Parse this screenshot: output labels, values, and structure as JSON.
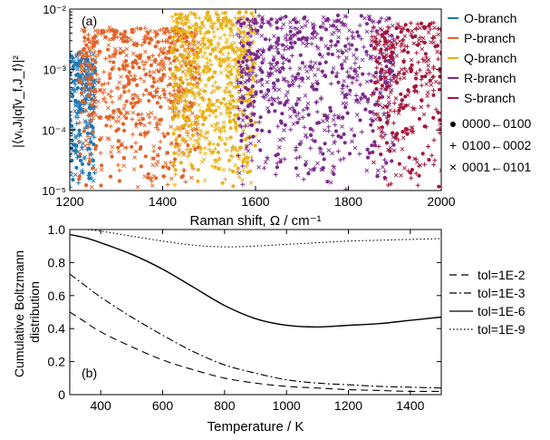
{
  "chart_data": [
    {
      "panel": "(a)",
      "type": "scatter",
      "xlabel": "Raman shift, Ω / cm⁻¹",
      "ylabel": "|⟨vᵢ,Jᵢ|α̃|v_f,J_f⟩|²",
      "xlim": [
        1200,
        2000
      ],
      "ylim": [
        1e-05,
        0.01
      ],
      "yscale": "log",
      "xticks": [
        1200,
        1400,
        1600,
        1800,
        2000
      ],
      "yticks": [
        {
          "value": 1e-05,
          "label": "10⁻⁵"
        },
        {
          "value": 0.0001,
          "label": "10⁻⁴"
        },
        {
          "value": 0.001,
          "label": "10⁻³"
        },
        {
          "value": 0.01,
          "label": "10⁻²"
        }
      ],
      "legend_position": "outside-right",
      "series": [
        {
          "name": "O-branch",
          "color": "#1f78b4",
          "x_range": [
            1200,
            1255
          ],
          "y_range": [
            1e-05,
            0.002
          ]
        },
        {
          "name": "P-branch",
          "color": "#e0642a",
          "x_range": [
            1220,
            1480
          ],
          "y_range": [
            1e-05,
            0.005
          ]
        },
        {
          "name": "Q-branch",
          "color": "#e8b21a",
          "x_range": [
            1420,
            1600
          ],
          "y_range": [
            1e-05,
            0.009
          ]
        },
        {
          "name": "R-branch",
          "color": "#7b2a8e",
          "x_range": [
            1560,
            1900
          ],
          "y_range": [
            1e-05,
            0.008
          ]
        },
        {
          "name": "S-branch",
          "color": "#a3173a",
          "x_range": [
            1850,
            2000
          ],
          "y_range": [
            1e-05,
            0.006
          ]
        }
      ],
      "marker_legend": [
        {
          "symbol": "●",
          "label": "0000←0100"
        },
        {
          "symbol": "+",
          "label": "0100←0002"
        },
        {
          "symbol": "×",
          "label": "0001←0101"
        }
      ]
    },
    {
      "panel": "(b)",
      "type": "line",
      "xlabel": "Temperature / K",
      "ylabel": "Cumulative Boltzmann distribution",
      "xlim": [
        300,
        1500
      ],
      "ylim": [
        0,
        1.0
      ],
      "xticks": [
        400,
        600,
        800,
        1000,
        1200,
        1400
      ],
      "yticks": [
        0,
        0.2,
        0.4,
        0.6,
        0.8,
        1.0
      ],
      "ytick_labels": [
        "0",
        "0.2",
        "0.4",
        "0.6",
        "0.8",
        "1.0"
      ],
      "legend_position": "right",
      "series": [
        {
          "name": "tol=1E-2",
          "dash": "8,5",
          "x": [
            300,
            350,
            400,
            500,
            600,
            700,
            800,
            900,
            1000,
            1100,
            1200,
            1300,
            1400,
            1500
          ],
          "y": [
            0.5,
            0.44,
            0.38,
            0.29,
            0.21,
            0.15,
            0.1,
            0.07,
            0.05,
            0.04,
            0.03,
            0.025,
            0.02,
            0.02
          ]
        },
        {
          "name": "tol=1E-3",
          "dash": "8,3,2,3",
          "x": [
            300,
            350,
            400,
            500,
            600,
            700,
            800,
            900,
            1000,
            1100,
            1200,
            1300,
            1400,
            1500
          ],
          "y": [
            0.73,
            0.66,
            0.59,
            0.47,
            0.36,
            0.26,
            0.18,
            0.13,
            0.09,
            0.07,
            0.06,
            0.05,
            0.045,
            0.04
          ]
        },
        {
          "name": "tol=1E-6",
          "dash": "",
          "x": [
            300,
            350,
            400,
            500,
            600,
            700,
            800,
            900,
            1000,
            1100,
            1200,
            1300,
            1400,
            1500
          ],
          "y": [
            0.97,
            0.95,
            0.92,
            0.85,
            0.76,
            0.65,
            0.54,
            0.46,
            0.42,
            0.41,
            0.42,
            0.43,
            0.45,
            0.47
          ]
        },
        {
          "name": "tol=1E-9",
          "dash": "1.5,2.5",
          "x": [
            300,
            350,
            400,
            500,
            600,
            700,
            800,
            900,
            1000,
            1100,
            1200,
            1300,
            1400,
            1500
          ],
          "y": [
            1.0,
            1.0,
            0.99,
            0.96,
            0.93,
            0.905,
            0.895,
            0.9,
            0.91,
            0.92,
            0.93,
            0.935,
            0.94,
            0.945
          ]
        }
      ]
    }
  ]
}
